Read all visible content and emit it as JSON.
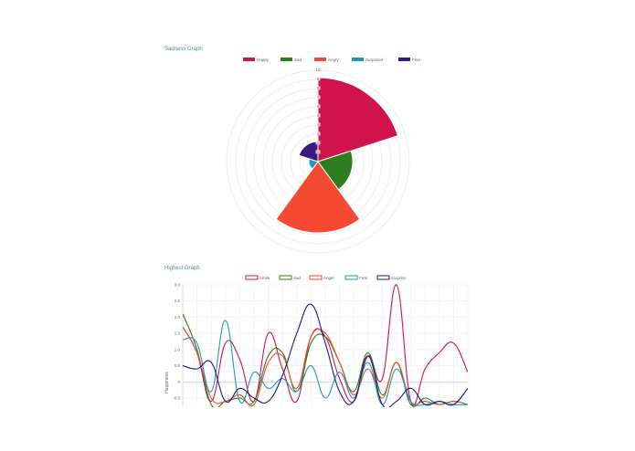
{
  "chart_data": [
    {
      "type": "polarArea",
      "title": "Sadness Graph",
      "categories": [
        "Happy",
        "Sad",
        "Angry",
        "Surprised",
        "Fear"
      ],
      "values": [
        9.2,
        3.8,
        7.8,
        1.0,
        2.2
      ],
      "colors": [
        "#d0134d",
        "#2e7d1e",
        "#f44a34",
        "#2196b6",
        "#3a1a80"
      ],
      "r_ticks": [
        "0",
        "1",
        "2",
        "3",
        "4",
        "5",
        "6",
        "7",
        "8",
        "9",
        "10"
      ],
      "r_max": 10
    },
    {
      "type": "line",
      "title": "Highest Graph",
      "ylabel": "Happiness",
      "ylim": [
        -0.8,
        3.0
      ],
      "y_ticks": [
        "3.0",
        "2.5",
        "2.0",
        "1.5",
        "1.0",
        "0.5",
        "0",
        "-0.5"
      ],
      "x": [
        0,
        1,
        2,
        3,
        4,
        5,
        6,
        7,
        8,
        9,
        10,
        11,
        12,
        13,
        14,
        15,
        16,
        17,
        18,
        19,
        20
      ],
      "series": [
        {
          "name": "Smile",
          "color": "#d0134d",
          "values": [
            1.7,
            0.9,
            -0.6,
            1.2,
            0.7,
            -0.6,
            1.5,
            0.4,
            -0.6,
            1.4,
            1.4,
            0.1,
            -0.6,
            0.8,
            0.1,
            3.0,
            -0.6,
            0.4,
            0.9,
            1.2,
            0.3
          ]
        },
        {
          "name": "Sad",
          "color": "#2e7d1e",
          "values": [
            2.1,
            1.0,
            -0.7,
            -0.6,
            -0.5,
            -0.6,
            0.8,
            0.9,
            -0.3,
            1.2,
            1.4,
            0.6,
            -0.3,
            0.9,
            -0.4,
            0.6,
            -0.7,
            -0.5,
            -0.7,
            -0.6,
            -0.7
          ]
        },
        {
          "name": "Anger",
          "color": "#f44a34",
          "values": [
            1.7,
            0.9,
            -0.5,
            -0.6,
            -0.4,
            -0.7,
            0.6,
            0.8,
            -0.2,
            1.4,
            1.5,
            0.6,
            -0.4,
            0.4,
            -0.5,
            0.6,
            -0.6,
            -0.6,
            -0.7,
            -0.6,
            -0.7
          ]
        },
        {
          "name": "Fear",
          "color": "#2196b6",
          "values": [
            1.3,
            1.2,
            -0.3,
            1.9,
            -0.6,
            0.3,
            -0.2,
            0.1,
            -0.3,
            0.5,
            -0.5,
            0.3,
            -0.5,
            0.6,
            -0.7,
            0.4,
            -0.6,
            -0.7,
            -0.6,
            -0.7,
            -0.7
          ]
        },
        {
          "name": "Surprise",
          "color": "#1a1a7e",
          "values": [
            0.5,
            0.4,
            0.6,
            -0.6,
            -0.2,
            -0.5,
            -0.6,
            0.2,
            1.5,
            2.4,
            1.2,
            -0.3,
            -0.6,
            0.8,
            -0.7,
            -0.6,
            -0.2,
            -0.7,
            -0.6,
            -0.7,
            -0.2
          ]
        }
      ]
    }
  ]
}
